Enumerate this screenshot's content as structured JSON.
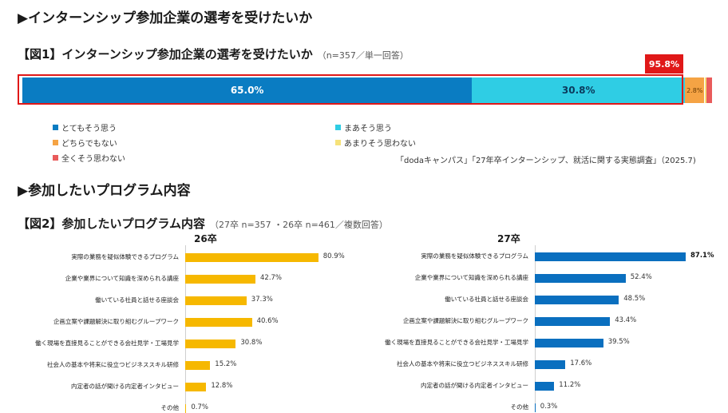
{
  "section1_title": "▶インターンシップ参加企業の選考を受けたいか",
  "figure1": {
    "title": "【図1】インターンシップ参加企業の選考を受けたいか",
    "note": "（n=357／単一回答）",
    "highlight": "95.8%",
    "source": "「dodaキャンパス」「27年卒インターンシップ、就活に関する実態調査」（2025.7)"
  },
  "section2_title": "▶参加したいプログラム内容",
  "figure2": {
    "title": "【図2】参加したいプログラム内容",
    "note": "（27卒 n=357 ・26卒 n=461／複数回答）"
  },
  "chart_data": [
    {
      "type": "bar",
      "orientation": "horizontal-stacked",
      "unit": "%",
      "series": [
        {
          "name": "とてもそう思う",
          "values": [
            65.0
          ],
          "color": "#0a7cc2",
          "label": "65.0%"
        },
        {
          "name": "まあそう思う",
          "values": [
            30.8
          ],
          "color": "#2fcde4",
          "label": "30.8%"
        },
        {
          "name": "どちらでもない",
          "values": [
            2.8
          ],
          "color": "#f5a344",
          "label": "2.8%"
        },
        {
          "name": "あまりそう思わない",
          "values": [
            0.3
          ],
          "color": "#f6e27a",
          "label": ""
        },
        {
          "name": "全くそう思わない",
          "values": [
            0.8
          ],
          "color": "#e95b5b",
          "label": ""
        }
      ],
      "legend_position": "bottom-left"
    },
    {
      "type": "bar",
      "orientation": "horizontal",
      "title": "26卒",
      "color": "#f6b800",
      "unit": "%",
      "categories": [
        "実際の業務を疑似体験できるプログラム",
        "企業や業界について知識を深められる講座",
        "働いている社員と話せる座談会",
        "企画立案や課題解決に取り組むグループワーク",
        "働く現場を直接見ることができる会社見学・工場見学",
        "社会人の基本や将来に役立つビジネススキル研修",
        "内定者の話が聞ける内定者インタビュー",
        "その他"
      ],
      "values": [
        80.9,
        42.7,
        37.3,
        40.6,
        30.8,
        15.2,
        12.8,
        0.7
      ],
      "labels": [
        "80.9%",
        "42.7%",
        "37.3%",
        "40.6%",
        "30.8%",
        "15.2%",
        "12.8%",
        "0.7%"
      ]
    },
    {
      "type": "bar",
      "orientation": "horizontal",
      "title": "27卒",
      "color": "#0a6fbf",
      "unit": "%",
      "categories": [
        "実際の業務を疑似体験できるプログラム",
        "企業や業界について知識を深められる講座",
        "働いている社員と話せる座談会",
        "企画立案や課題解決に取り組むグループワーク",
        "働く現場を直接見ることができる会社見学・工場見学",
        "社会人の基本や将来に役立つビジネススキル研修",
        "内定者の話が聞ける内定者インタビュー",
        "その他"
      ],
      "values": [
        87.1,
        52.4,
        48.5,
        43.4,
        39.5,
        17.6,
        11.2,
        0.3
      ],
      "labels": [
        "87.1%",
        "52.4%",
        "48.5%",
        "43.4%",
        "39.5%",
        "17.6%",
        "11.2%",
        "0.3%"
      ]
    }
  ]
}
